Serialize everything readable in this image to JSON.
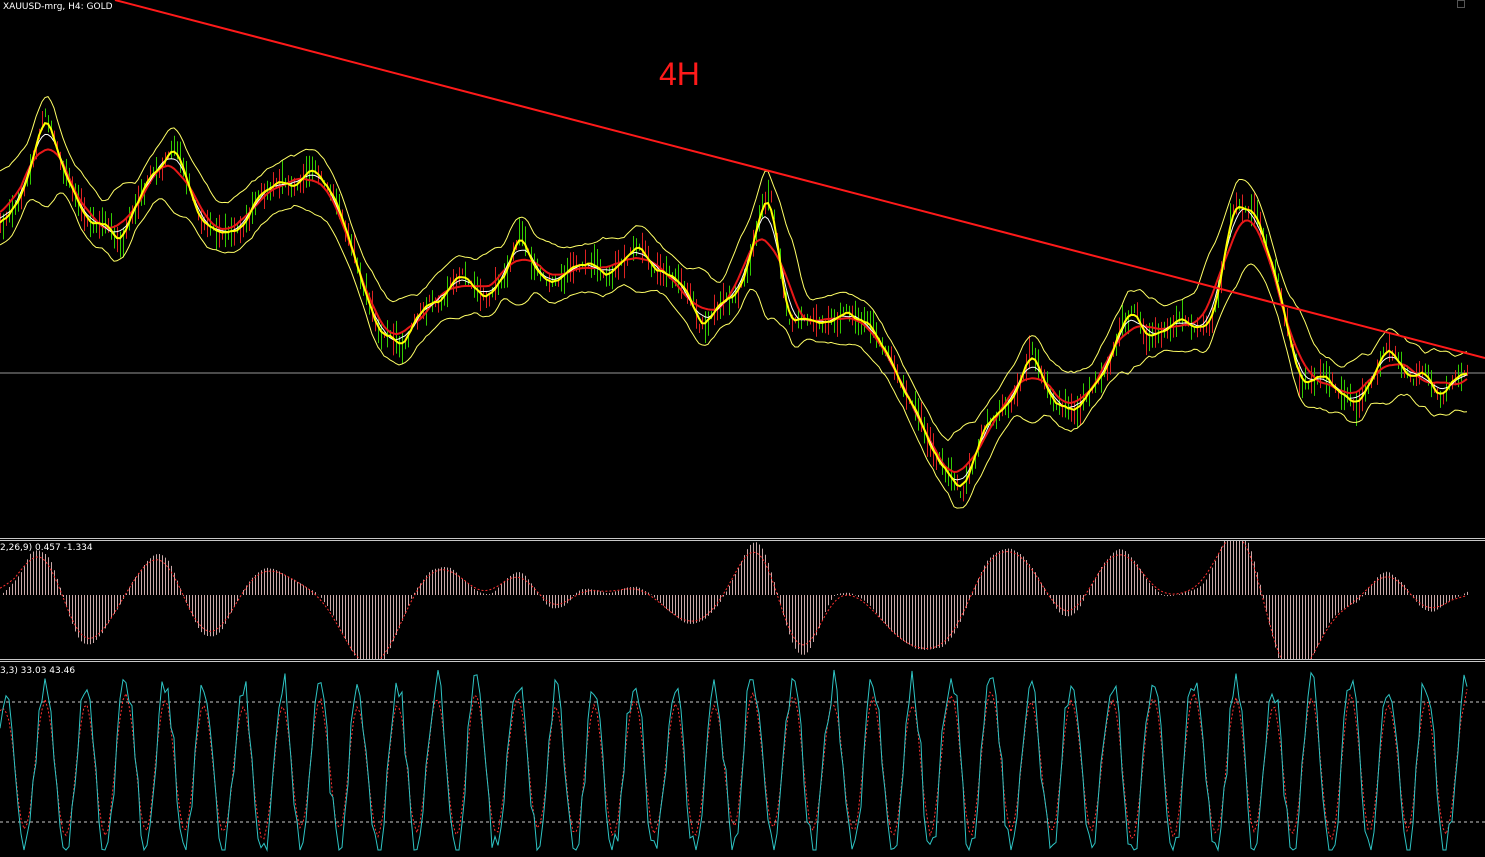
{
  "chart_header": "XAUUSD-mrg, H4:  GOLD",
  "annotation": "4H",
  "macd_label": "2,26,9) 0.457 -1.334",
  "stoch_label": "3,3) 33.03 43.46",
  "colors": {
    "background": "#000000",
    "trendline": "#ff1a1a",
    "envelope": "#ffff66",
    "ma_fast": "#ffff00",
    "ma_mid": "#ffffff",
    "ma_slow": "#e81818",
    "bull_bar": "#33cc00",
    "bear_bar": "#dd2222",
    "macd_hist": "#c9a9a9",
    "macd_signal": "#ff3030",
    "stoch_main": "#2ec4c4",
    "stoch_signal": "#ff3030",
    "level_line": "#c8c8c8"
  },
  "icons": {
    "window-corner": "tiny box glyph at top-right"
  }
}
